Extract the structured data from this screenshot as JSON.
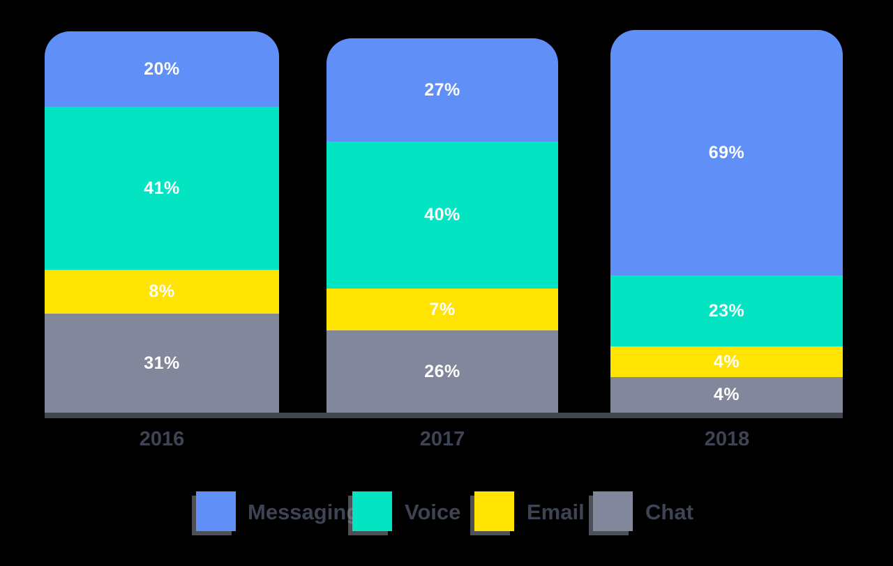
{
  "background_color": "#000000",
  "colors": {
    "messaging": "#5F8FF7",
    "voice": "#03E4C3",
    "email": "#FFE303",
    "chat": "#82879B",
    "axis_line": "#42464E",
    "axis_text": "#3E4454",
    "value_text": "#FFFFFF"
  },
  "chart_data": {
    "type": "bar",
    "stacked": true,
    "title": "",
    "xlabel": "",
    "ylabel": "",
    "grid": false,
    "legend_position": "bottom",
    "value_label_format": "percent",
    "categories": [
      "2016",
      "2017",
      "2018"
    ],
    "series": [
      {
        "name": "Messaging",
        "color": "#5F8FF7",
        "values": [
          20,
          27,
          69
        ]
      },
      {
        "name": "Voice",
        "color": "#03E4C3",
        "values": [
          41,
          40,
          23
        ]
      },
      {
        "name": "Email",
        "color": "#FFE303",
        "values": [
          8,
          7,
          4
        ]
      },
      {
        "name": "Chat",
        "color": "#82879B",
        "values": [
          31,
          26,
          4
        ]
      }
    ],
    "value_labels": [
      [
        "20%",
        "41%",
        "8%",
        "31%"
      ],
      [
        "27%",
        "40%",
        "7%",
        "26%"
      ],
      [
        "69%",
        "23%",
        "4%",
        "4%"
      ]
    ]
  },
  "legend": {
    "items": [
      {
        "label": "Messaging",
        "color": "#5F8FF7"
      },
      {
        "label": "Voice",
        "color": "#03E4C3"
      },
      {
        "label": "Email",
        "color": "#FFE303"
      },
      {
        "label": "Chat",
        "color": "#82879B"
      }
    ]
  }
}
